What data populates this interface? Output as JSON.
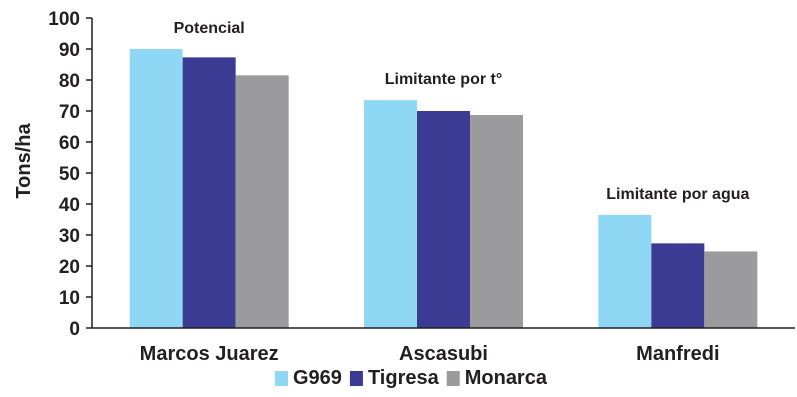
{
  "chart_data": {
    "type": "bar",
    "categories": [
      "Marcos Juarez",
      "Ascasubi",
      "Manfredi"
    ],
    "series": [
      {
        "name": "G969",
        "values": [
          90,
          73.5,
          36.5
        ],
        "color": "#8fd8f5"
      },
      {
        "name": "Tigresa",
        "values": [
          87.3,
          70,
          27.3
        ],
        "color": "#3b3b94"
      },
      {
        "name": "Monarca",
        "values": [
          81.5,
          68.7,
          24.7
        ],
        "color": "#9b9b9e"
      }
    ],
    "ylabel": "Tons/ha",
    "ylim": [
      0,
      100
    ],
    "yticks": [
      0,
      10,
      20,
      30,
      40,
      50,
      60,
      70,
      80,
      90,
      100
    ],
    "annotations": [
      {
        "category": "Marcos Juarez",
        "text": "Potencial"
      },
      {
        "category": "Ascasubi",
        "text": "Limitante por t°"
      },
      {
        "category": "Manfredi",
        "text": "Limitante por agua"
      }
    ],
    "legend": "bottom",
    "grid": false
  }
}
